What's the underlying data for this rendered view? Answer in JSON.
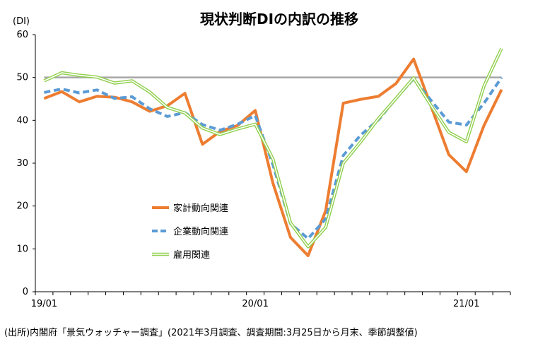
{
  "chart_data": {
    "type": "line",
    "title": "現状判断DIの内訳の推移",
    "ylabel": "(DI)",
    "xlabel": "",
    "ylim": [
      0,
      60
    ],
    "y_ticks": [
      "0",
      "10",
      "20",
      "30",
      "40",
      "50",
      "60"
    ],
    "x_ticks": [
      {
        "label": "19/01",
        "index": 0
      },
      {
        "label": "20/01",
        "index": 12
      },
      {
        "label": "21/01",
        "index": 24
      }
    ],
    "x": [
      "19/01",
      "19/02",
      "19/03",
      "19/04",
      "19/05",
      "19/06",
      "19/07",
      "19/08",
      "19/09",
      "19/10",
      "19/11",
      "19/12",
      "20/01",
      "20/02",
      "20/03",
      "20/04",
      "20/05",
      "20/06",
      "20/07",
      "20/08",
      "20/09",
      "20/10",
      "20/11",
      "20/12",
      "21/01",
      "21/02",
      "21/03"
    ],
    "reference_line": {
      "value": 50,
      "color": "#a6a6a6"
    },
    "grid": false,
    "legend_position": "center-left",
    "series": [
      {
        "name": "家計動向関連",
        "color": "#ed7d31",
        "style": "solid",
        "values": [
          45.1,
          46.7,
          44.3,
          45.6,
          45.4,
          44.3,
          42.1,
          43.4,
          46.3,
          34.4,
          37.4,
          38.8,
          42.3,
          25.4,
          12.7,
          8.4,
          18.9,
          44.0,
          44.9,
          45.6,
          48.6,
          54.3,
          43.2,
          32.0,
          28.0,
          38.8,
          47.2
        ]
      },
      {
        "name": "企業動向関連",
        "color": "#5b9bd5",
        "style": "dashed",
        "values": [
          46.5,
          47.3,
          46.4,
          47.1,
          45.1,
          45.5,
          42.7,
          40.9,
          41.8,
          39.0,
          37.7,
          39.1,
          41.1,
          29.7,
          15.9,
          12.4,
          17.0,
          31.8,
          36.6,
          40.1,
          45.1,
          49.7,
          44.6,
          39.6,
          38.9,
          44.0,
          50.0
        ]
      },
      {
        "name": "雇用関連",
        "color": "#92d050",
        "style": "double",
        "values": [
          49.2,
          51.1,
          50.5,
          50.1,
          48.7,
          49.2,
          46.6,
          43.0,
          41.7,
          38.2,
          36.7,
          38.0,
          39.1,
          31.0,
          16.1,
          10.5,
          15.0,
          30.0,
          35.0,
          40.4,
          45.1,
          49.9,
          43.4,
          37.2,
          35.0,
          48.0,
          56.8
        ]
      }
    ]
  },
  "footnote": "(出所)内閣府「景気ウォッチャー調査」(2021年3月調査、調査期間:3月25日から月末、季節調整値)"
}
